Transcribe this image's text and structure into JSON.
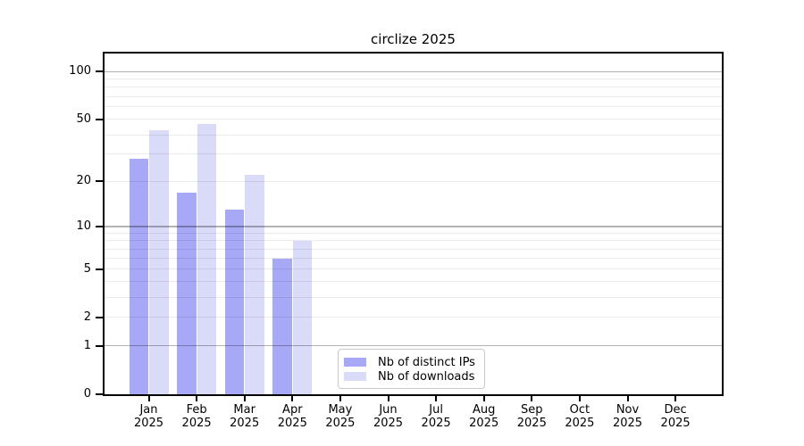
{
  "chart_data": {
    "type": "bar",
    "title": "circlize 2025",
    "categories": [
      "Jan",
      "Feb",
      "Mar",
      "Apr",
      "May",
      "Jun",
      "Jul",
      "Aug",
      "Sep",
      "Oct",
      "Nov",
      "Dec"
    ],
    "category_year": "2025",
    "series": [
      {
        "name": "Nb of distinct IPs",
        "color": "#a7a8f6",
        "values": [
          28,
          17,
          13,
          6,
          0,
          0,
          0,
          0,
          0,
          0,
          0,
          0
        ]
      },
      {
        "name": "Nb of downloads",
        "color": "#dadaf9",
        "values": [
          43,
          47,
          22,
          8,
          0,
          0,
          0,
          0,
          0,
          0,
          0,
          0
        ]
      }
    ],
    "xlabel": "",
    "ylabel": "",
    "y_scale": "log1p",
    "ylim": [
      0,
      130
    ],
    "y_axis_ticks": [
      0,
      1,
      2,
      5,
      10,
      20,
      50,
      100
    ],
    "grid": {
      "major_values": [
        1,
        10,
        100
      ],
      "minor_values": [
        2,
        3,
        4,
        5,
        6,
        7,
        8,
        9,
        20,
        30,
        40,
        50,
        60,
        70,
        80,
        90
      ],
      "major_color": "rgba(0,0,0,0.30)",
      "minor_color": "rgba(0,0,0,0.08)"
    },
    "legend_position": "lower center",
    "spine_color": "#000000",
    "background_color": "#ffffff"
  }
}
